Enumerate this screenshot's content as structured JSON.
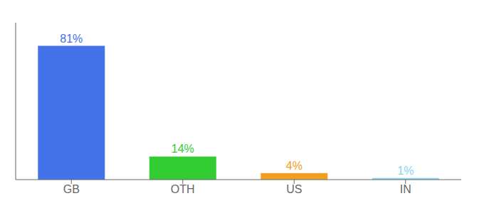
{
  "chart_data": {
    "type": "bar",
    "categories": [
      "GB",
      "OTH",
      "US",
      "IN"
    ],
    "values": [
      81,
      14,
      4,
      1
    ],
    "value_labels": [
      "81%",
      "14%",
      "4%",
      "1%"
    ],
    "colors": [
      "#4472e8",
      "#33cc33",
      "#f0a020",
      "#88d4f0"
    ],
    "ylim": [
      0,
      95
    ],
    "data_labels": true,
    "tick_labels": "x",
    "grid": false
  }
}
